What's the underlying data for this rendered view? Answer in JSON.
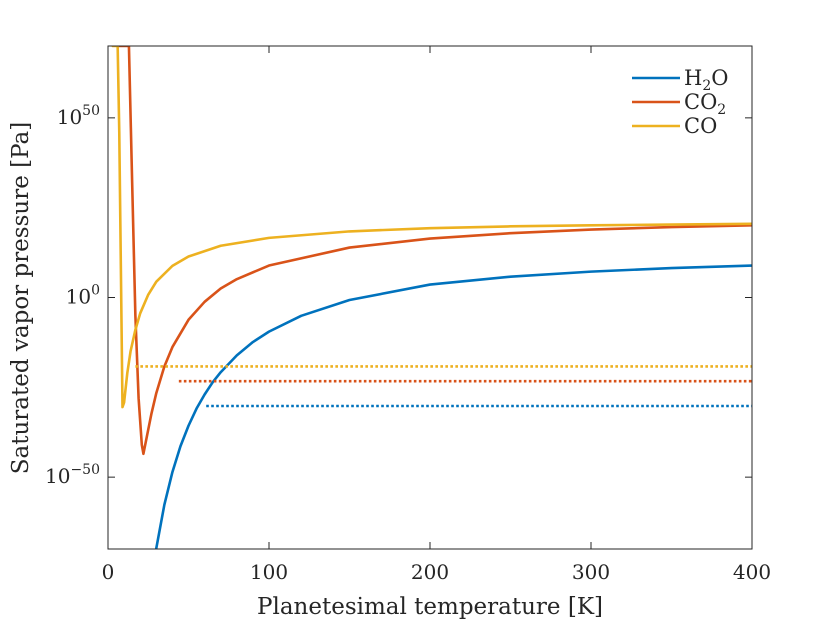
{
  "chart_data": {
    "type": "line",
    "title": "",
    "xlabel": "Planetesimal temperature [K]",
    "ylabel": "Saturated vapor pressure [Pa]",
    "xscale": "linear",
    "yscale": "log",
    "xlim": [
      0,
      400
    ],
    "ylim_log10": [
      -70,
      70
    ],
    "xticks": [
      0,
      100,
      200,
      300,
      400
    ],
    "xtick_labels": [
      "0",
      "100",
      "200",
      "300",
      "400"
    ],
    "yticks_log10": [
      50,
      0,
      -50
    ],
    "ytick_labels": [
      {
        "base": "10",
        "exp": "50"
      },
      {
        "base": "10",
        "exp": "0"
      },
      {
        "base": "10",
        "exp": "−50"
      }
    ],
    "legend_position": "top-right",
    "series": [
      {
        "name": "H2O",
        "label_parts": {
          "pre": "H",
          "sub": "2",
          "post": "O"
        },
        "color": "#0072BD",
        "style": "solid",
        "x": [
          30,
          35,
          40,
          45,
          50,
          55,
          60,
          65,
          70,
          80,
          90,
          100,
          120,
          150,
          200,
          250,
          300,
          350,
          400
        ],
        "log10y": [
          -69.8,
          -57.7,
          -48.6,
          -41.4,
          -35.7,
          -30.9,
          -27.0,
          -23.6,
          -20.8,
          -16.1,
          -12.4,
          -9.5,
          -5.1,
          -0.7,
          3.6,
          5.8,
          7.2,
          8.2,
          8.9
        ]
      },
      {
        "name": "CO2",
        "label_parts": {
          "pre": "CO",
          "sub": "2",
          "post": ""
        },
        "color": "#D95319",
        "style": "solid",
        "x": [
          7,
          9,
          11,
          13,
          15,
          17,
          19,
          21,
          22,
          24,
          27,
          30,
          35,
          40,
          50,
          60,
          70,
          80,
          100,
          150,
          200,
          250,
          300,
          350,
          400
        ],
        "log10y": [
          70,
          70,
          70,
          70,
          32,
          -5,
          -28,
          -41,
          -43.5,
          -39,
          -32.3,
          -26.6,
          -19.2,
          -13.8,
          -6.2,
          -1.2,
          2.5,
          5.1,
          8.9,
          13.9,
          16.4,
          17.9,
          18.9,
          19.6,
          20.1
        ]
      },
      {
        "name": "CO",
        "label_parts": {
          "pre": "CO",
          "sub": "",
          "post": ""
        },
        "color": "#EDB120",
        "style": "solid",
        "x": [
          3,
          4,
          5,
          6,
          7,
          8,
          9,
          10,
          12,
          14,
          17,
          20,
          25,
          30,
          40,
          50,
          70,
          100,
          150,
          200,
          250,
          300,
          350,
          400
        ],
        "log10y": [
          70,
          70,
          70,
          70,
          46,
          8,
          -30.5,
          -29.2,
          -21,
          -15,
          -9,
          -4.4,
          0.8,
          4.4,
          8.8,
          11.4,
          14.4,
          16.6,
          18.4,
          19.3,
          19.8,
          20.1,
          20.3,
          20.5
        ]
      },
      {
        "name": "CO threshold",
        "color": "#EDB120",
        "style": "dotted",
        "x": [
          17,
          400
        ],
        "log10y": [
          -19.2,
          -19.2
        ]
      },
      {
        "name": "CO2 threshold",
        "color": "#D95319",
        "style": "dotted",
        "x": [
          44,
          400
        ],
        "log10y": [
          -23.3,
          -23.3
        ]
      },
      {
        "name": "H2O threshold",
        "color": "#0072BD",
        "style": "dotted",
        "x": [
          61,
          400
        ],
        "log10y": [
          -30.2,
          -30.2
        ]
      }
    ]
  }
}
